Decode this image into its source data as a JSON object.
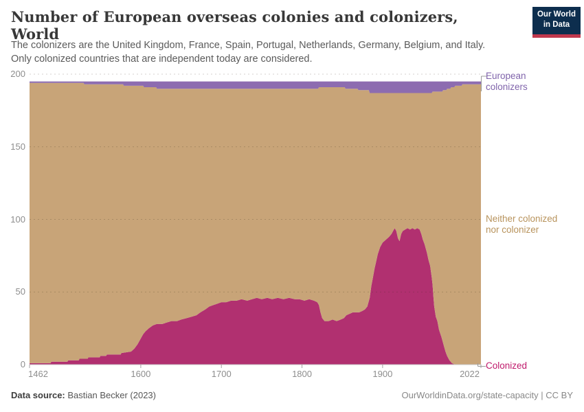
{
  "header": {
    "title": "Number of European overseas colonies and colonizers, World",
    "subtitle_lines": [
      "The colonizers are the United Kingdom, France, Spain, Portugal, Netherlands, Germany, Belgium, and Italy.",
      "Only colonized countries that are independent today are considered."
    ],
    "logo": {
      "line1": "Our World",
      "line2": "in Data",
      "bg_color": "#0d2e4e",
      "bar_color": "#c0384d"
    }
  },
  "chart_data": {
    "type": "area",
    "stacked": true,
    "title": "Number of European overseas colonies and colonizers, World",
    "x_domain": [
      1462,
      2022
    ],
    "y_domain": [
      0,
      200
    ],
    "total_countries": 195,
    "x_tick_years": [
      1462,
      1600,
      1700,
      1800,
      1900,
      2022
    ],
    "x_ticks": [
      "1462",
      "1600",
      "1700",
      "1800",
      "1900",
      "2022"
    ],
    "y_ticks": [
      0,
      50,
      100,
      150,
      200
    ],
    "grid": "dashed horizontal",
    "legend_position": "right edge annotations",
    "series": [
      {
        "name": "Colonized",
        "color": "#b13070",
        "label_color": "#bf196b",
        "points": [
          [
            1462,
            1
          ],
          [
            1488,
            1
          ],
          [
            1489,
            2
          ],
          [
            1509,
            2
          ],
          [
            1510,
            3
          ],
          [
            1523,
            3
          ],
          [
            1524,
            4
          ],
          [
            1534,
            4
          ],
          [
            1535,
            5
          ],
          [
            1549,
            5
          ],
          [
            1550,
            6
          ],
          [
            1557,
            6
          ],
          [
            1558,
            7
          ],
          [
            1575,
            7
          ],
          [
            1576,
            8
          ],
          [
            1588,
            9
          ],
          [
            1592,
            11
          ],
          [
            1596,
            14
          ],
          [
            1600,
            18
          ],
          [
            1603,
            21
          ],
          [
            1606,
            23
          ],
          [
            1610,
            25
          ],
          [
            1615,
            27
          ],
          [
            1620,
            28
          ],
          [
            1627,
            28
          ],
          [
            1632,
            29
          ],
          [
            1638,
            30
          ],
          [
            1645,
            30
          ],
          [
            1650,
            31
          ],
          [
            1657,
            32
          ],
          [
            1663,
            33
          ],
          [
            1669,
            34
          ],
          [
            1674,
            36
          ],
          [
            1680,
            38
          ],
          [
            1685,
            40
          ],
          [
            1690,
            41
          ],
          [
            1695,
            42
          ],
          [
            1700,
            43
          ],
          [
            1706,
            43
          ],
          [
            1712,
            44
          ],
          [
            1719,
            44
          ],
          [
            1725,
            45
          ],
          [
            1732,
            44
          ],
          [
            1738,
            45
          ],
          [
            1744,
            46
          ],
          [
            1750,
            45
          ],
          [
            1757,
            46
          ],
          [
            1763,
            45
          ],
          [
            1770,
            46
          ],
          [
            1777,
            45
          ],
          [
            1784,
            46
          ],
          [
            1791,
            45
          ],
          [
            1797,
            45
          ],
          [
            1803,
            44
          ],
          [
            1809,
            45
          ],
          [
            1815,
            44
          ],
          [
            1819,
            43
          ],
          [
            1821,
            41
          ],
          [
            1823,
            36
          ],
          [
            1825,
            32
          ],
          [
            1828,
            30
          ],
          [
            1833,
            30
          ],
          [
            1838,
            31
          ],
          [
            1843,
            30
          ],
          [
            1848,
            31
          ],
          [
            1852,
            32
          ],
          [
            1855,
            34
          ],
          [
            1859,
            35
          ],
          [
            1863,
            36
          ],
          [
            1867,
            36
          ],
          [
            1871,
            36
          ],
          [
            1875,
            37
          ],
          [
            1878,
            38
          ],
          [
            1881,
            40
          ],
          [
            1884,
            46
          ],
          [
            1886,
            54
          ],
          [
            1888,
            60
          ],
          [
            1890,
            66
          ],
          [
            1892,
            71
          ],
          [
            1894,
            76
          ],
          [
            1897,
            81
          ],
          [
            1900,
            84
          ],
          [
            1904,
            86
          ],
          [
            1908,
            88
          ],
          [
            1911,
            90
          ],
          [
            1913,
            92
          ],
          [
            1915,
            94
          ],
          [
            1917,
            92
          ],
          [
            1919,
            87
          ],
          [
            1921,
            85
          ],
          [
            1923,
            90
          ],
          [
            1925,
            92
          ],
          [
            1928,
            93
          ],
          [
            1931,
            94
          ],
          [
            1934,
            93
          ],
          [
            1937,
            94
          ],
          [
            1940,
            93
          ],
          [
            1943,
            94
          ],
          [
            1946,
            93
          ],
          [
            1948,
            90
          ],
          [
            1950,
            86
          ],
          [
            1952,
            83
          ],
          [
            1955,
            77
          ],
          [
            1957,
            72
          ],
          [
            1959,
            68
          ],
          [
            1961,
            60
          ],
          [
            1962,
            55
          ],
          [
            1963,
            47
          ],
          [
            1964,
            40
          ],
          [
            1966,
            33
          ],
          [
            1968,
            30
          ],
          [
            1970,
            24
          ],
          [
            1973,
            19
          ],
          [
            1976,
            13
          ],
          [
            1978,
            9
          ],
          [
            1980,
            6
          ],
          [
            1983,
            3
          ],
          [
            1986,
            1
          ],
          [
            1990,
            0
          ],
          [
            2022,
            0
          ]
        ]
      },
      {
        "name": "Neither colonized nor colonizer",
        "color": "#c8a478",
        "label_color": "#b8935c",
        "derived": "total_countries minus Colonized minus European colonizers"
      },
      {
        "name": "European colonizers",
        "color": "#8d6cb0",
        "label_color": "#8064ab",
        "points": [
          [
            1462,
            1
          ],
          [
            1529,
            1
          ],
          [
            1530,
            2
          ],
          [
            1578,
            2
          ],
          [
            1579,
            3
          ],
          [
            1603,
            3
          ],
          [
            1604,
            4
          ],
          [
            1619,
            4
          ],
          [
            1620,
            5
          ],
          [
            1820,
            5
          ],
          [
            1821,
            4
          ],
          [
            1853,
            4
          ],
          [
            1854,
            5
          ],
          [
            1869,
            5
          ],
          [
            1870,
            6
          ],
          [
            1883,
            6
          ],
          [
            1884,
            8
          ],
          [
            1961,
            8
          ],
          [
            1962,
            7
          ],
          [
            1974,
            7
          ],
          [
            1975,
            6
          ],
          [
            1979,
            6
          ],
          [
            1980,
            5
          ],
          [
            1984,
            5
          ],
          [
            1985,
            4
          ],
          [
            1989,
            4
          ],
          [
            1990,
            3
          ],
          [
            1998,
            3
          ],
          [
            1999,
            2
          ],
          [
            2022,
            2
          ]
        ]
      }
    ]
  },
  "footer": {
    "source_label": "Data source:",
    "source_value": " Bastian Becker (2023)",
    "credit": "OurWorldinData.org/state-capacity | CC BY"
  }
}
